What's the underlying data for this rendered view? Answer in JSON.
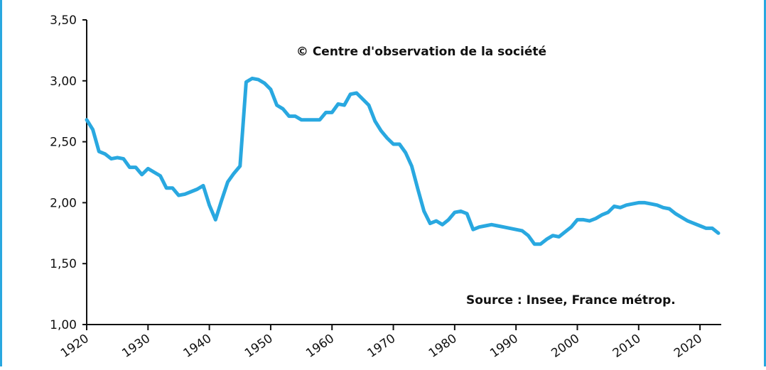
{
  "chart_data": {
    "type": "line",
    "title": "",
    "xlabel": "",
    "ylabel": "",
    "xlim": [
      1920,
      2023
    ],
    "ylim": [
      1.0,
      3.5
    ],
    "yticks": [
      "1,00",
      "1,50",
      "2,00",
      "2,50",
      "3,00",
      "3,50"
    ],
    "ytick_values": [
      1.0,
      1.5,
      2.0,
      2.5,
      3.0,
      3.5
    ],
    "xticks": [
      "1920",
      "1930",
      "1940",
      "1950",
      "1960",
      "1970",
      "1980",
      "1990",
      "2000",
      "2010",
      "2020"
    ],
    "xtick_values": [
      1920,
      1930,
      1940,
      1950,
      1960,
      1970,
      1980,
      1990,
      2000,
      2010,
      2020
    ],
    "grid": false,
    "line_color": "#29a8e0",
    "annotations": {
      "copyright": "© Centre d'observation de la société",
      "source": "Source : Insee, France métrop."
    },
    "series": [
      {
        "x": [
          1920,
          1921,
          1922,
          1923,
          1924,
          1925,
          1926,
          1927,
          1928,
          1929,
          1930,
          1931,
          1932,
          1933,
          1934,
          1935,
          1936,
          1937,
          1938,
          1939,
          1940,
          1941,
          1942,
          1943,
          1944,
          1945,
          1946,
          1947,
          1948,
          1949,
          1950,
          1951,
          1952,
          1953,
          1954,
          1955,
          1956,
          1957,
          1958,
          1959,
          1960,
          1961,
          1962,
          1963,
          1964,
          1965,
          1966,
          1967,
          1968,
          1969,
          1970,
          1971,
          1972,
          1973,
          1974,
          1975,
          1976,
          1977,
          1978,
          1979,
          1980,
          1981,
          1982,
          1983,
          1984,
          1985,
          1986,
          1987,
          1988,
          1989,
          1990,
          1991,
          1992,
          1993,
          1994,
          1995,
          1996,
          1997,
          1998,
          1999,
          2000,
          2001,
          2002,
          2003,
          2004,
          2005,
          2006,
          2007,
          2008,
          2009,
          2010,
          2011,
          2012,
          2013,
          2014,
          2015,
          2016,
          2017,
          2018,
          2019,
          2020,
          2021,
          2022,
          2023
        ],
        "y": [
          2.68,
          2.6,
          2.42,
          2.4,
          2.36,
          2.37,
          2.36,
          2.29,
          2.29,
          2.23,
          2.28,
          2.25,
          2.22,
          2.12,
          2.12,
          2.06,
          2.07,
          2.09,
          2.11,
          2.14,
          1.98,
          1.86,
          2.02,
          2.17,
          2.24,
          2.3,
          2.99,
          3.02,
          3.01,
          2.98,
          2.93,
          2.8,
          2.77,
          2.71,
          2.71,
          2.68,
          2.68,
          2.68,
          2.68,
          2.74,
          2.74,
          2.81,
          2.8,
          2.89,
          2.9,
          2.85,
          2.8,
          2.67,
          2.59,
          2.53,
          2.48,
          2.48,
          2.41,
          2.3,
          2.11,
          1.93,
          1.83,
          1.85,
          1.82,
          1.86,
          1.92,
          1.93,
          1.91,
          1.78,
          1.8,
          1.81,
          1.82,
          1.81,
          1.8,
          1.79,
          1.78,
          1.77,
          1.73,
          1.66,
          1.66,
          1.7,
          1.73,
          1.72,
          1.76,
          1.8,
          1.86,
          1.86,
          1.85,
          1.87,
          1.9,
          1.92,
          1.97,
          1.96,
          1.98,
          1.99,
          2.0,
          2.0,
          1.99,
          1.98,
          1.96,
          1.95,
          1.91,
          1.88,
          1.85,
          1.83,
          1.81,
          1.79,
          1.79,
          1.75
        ]
      }
    ]
  }
}
